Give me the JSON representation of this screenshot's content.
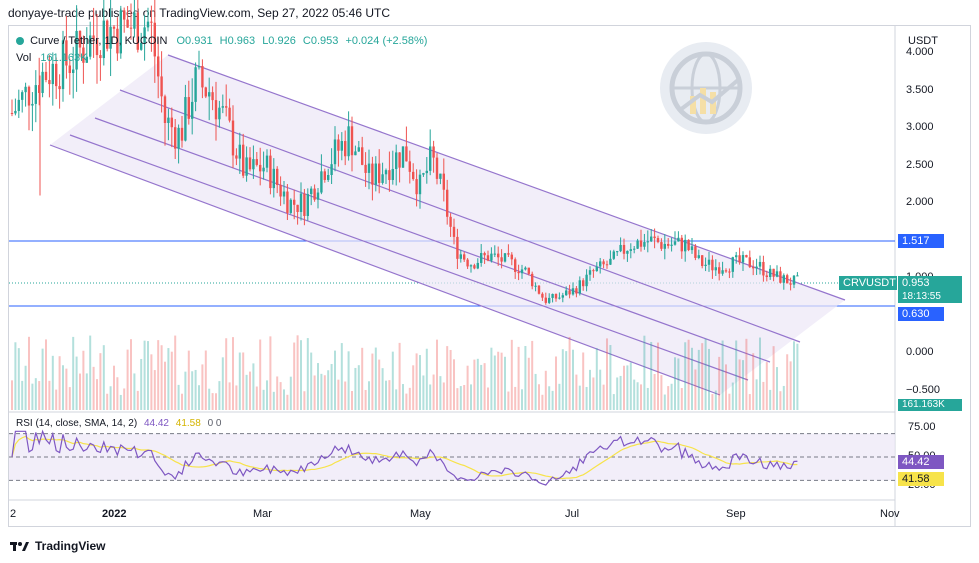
{
  "header": {
    "publish_text": "donyaye-trade published on TradingView.com, Sep 27, 2022 05:46 UTC"
  },
  "legend": {
    "symbol": "Curve / Tether, 1D, KUCOIN",
    "open": "O0.931",
    "high": "H0.963",
    "low": "L0.926",
    "close": "C0.953",
    "change": "+0.024 (+2.58%)",
    "volume_label": "Vol",
    "volume_value": "161.163K"
  },
  "rsi_legend": {
    "label": "RSI (14, close, SMA, 14, 2)",
    "rsi": "44.42",
    "sma": "41.58",
    "extra": "0  0"
  },
  "axis": {
    "currency": "USDT",
    "price_ticks": [
      "4.000",
      "3.500",
      "3.000",
      "2.500",
      "2.000",
      "1.500",
      "1.000",
      "0.500",
      "0.000",
      "−0.500"
    ],
    "rsi_ticks": [
      "75.00",
      "50.00",
      "25.00"
    ],
    "time_ticks": [
      "2",
      "2022",
      "Mar",
      "May",
      "Jul",
      "Sep",
      "Nov"
    ]
  },
  "tags": {
    "upper_line": "1.517",
    "lower_line": "0.630",
    "symbol_tag": "CRVUSDT",
    "last_price": "0.953",
    "countdown": "18:13:55",
    "volume_tag": "161.163K",
    "rsi_value": "44.42",
    "rsi_sma": "41.58"
  },
  "footer": {
    "brand": "TradingView"
  },
  "colors": {
    "up": "#26a69a",
    "down": "#ef5350",
    "channel": "#9575cd",
    "hline": "#2962ff",
    "rsi": "#7e57c2",
    "rsi_sma": "#f7e34a"
  },
  "chart_data": {
    "type": "candlestick",
    "symbol": "CRVUSDT",
    "timeframe": "1D",
    "price_axis_range": [
      -0.6,
      4.0
    ],
    "horizontal_levels": [
      1.517,
      0.63
    ],
    "last_close": 0.953,
    "candles_approx": [
      {
        "date": "2021-12",
        "open": 3.2,
        "high": 4.7,
        "low": 2.1,
        "close": 4.0
      },
      {
        "date": "2022-01-10",
        "open": 4.3,
        "high": 4.6,
        "low": 3.6,
        "close": 3.9
      },
      {
        "date": "2022-01-20",
        "open": 3.8,
        "high": 3.9,
        "low": 2.4,
        "close": 2.7
      },
      {
        "date": "2022-02-05",
        "open": 2.9,
        "high": 3.6,
        "low": 2.8,
        "close": 3.4
      },
      {
        "date": "2022-02-15",
        "open": 3.5,
        "high": 3.7,
        "low": 3.0,
        "close": 3.1
      },
      {
        "date": "2022-03-01",
        "open": 2.8,
        "high": 2.9,
        "low": 2.1,
        "close": 2.3
      },
      {
        "date": "2022-03-15",
        "open": 2.1,
        "high": 2.3,
        "low": 1.9,
        "close": 2.0
      },
      {
        "date": "2022-04-01",
        "open": 2.6,
        "high": 3.1,
        "low": 2.5,
        "close": 2.9
      },
      {
        "date": "2022-04-15",
        "open": 2.4,
        "high": 2.6,
        "low": 2.2,
        "close": 2.3
      },
      {
        "date": "2022-05-01",
        "open": 2.5,
        "high": 2.7,
        "low": 2.0,
        "close": 2.1
      },
      {
        "date": "2022-05-10",
        "open": 2.0,
        "high": 2.0,
        "low": 1.0,
        "close": 1.2
      },
      {
        "date": "2022-06-01",
        "open": 1.3,
        "high": 1.4,
        "low": 1.0,
        "close": 1.1
      },
      {
        "date": "2022-06-15",
        "open": 0.8,
        "high": 0.9,
        "low": 0.55,
        "close": 0.7
      },
      {
        "date": "2022-07-01",
        "open": 0.9,
        "high": 1.1,
        "low": 0.85,
        "close": 1.05
      },
      {
        "date": "2022-07-20",
        "open": 1.3,
        "high": 1.6,
        "low": 1.2,
        "close": 1.4
      },
      {
        "date": "2022-08-05",
        "open": 1.4,
        "high": 1.55,
        "low": 1.3,
        "close": 1.35
      },
      {
        "date": "2022-08-20",
        "open": 1.2,
        "high": 1.25,
        "low": 1.05,
        "close": 1.1
      },
      {
        "date": "2022-09-05",
        "open": 1.1,
        "high": 1.2,
        "low": 1.05,
        "close": 1.15
      },
      {
        "date": "2022-09-15",
        "open": 1.05,
        "high": 1.1,
        "low": 0.92,
        "close": 0.95
      },
      {
        "date": "2022-09-26",
        "open": 0.931,
        "high": 0.963,
        "low": 0.926,
        "close": 0.953
      }
    ],
    "rsi": {
      "period": 14,
      "last": 44.42,
      "sma_last": 41.58,
      "bands": [
        70,
        50,
        30
      ],
      "axis_ticks": [
        75,
        50,
        25
      ]
    },
    "volume_last": "161.163K"
  }
}
